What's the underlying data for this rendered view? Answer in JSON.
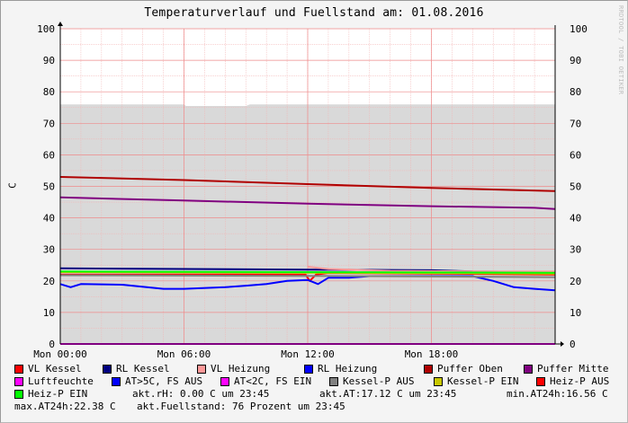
{
  "chart_data": {
    "type": "line",
    "title": "Temperaturverlauf und Fuellstand am: 01.08.2016",
    "ylabel": "C",
    "ylim": [
      0,
      100
    ],
    "y_ticks": [
      "0",
      "10",
      "20",
      "30",
      "40",
      "50",
      "60",
      "70",
      "80",
      "90",
      "100"
    ],
    "x_ticks": [
      {
        "label": "Mon 00:00",
        "t": 0
      },
      {
        "label": "Mon 06:00",
        "t": 6
      },
      {
        "label": "Mon 12:00",
        "t": 12
      },
      {
        "label": "Mon 18:00",
        "t": 18
      }
    ],
    "xlim": [
      0,
      24
    ],
    "area_fuellstand": {
      "color": "#d9d9d9",
      "points": [
        [
          0,
          76
        ],
        [
          6,
          76
        ],
        [
          6.1,
          75.5
        ],
        [
          9,
          75.5
        ],
        [
          9.2,
          76
        ],
        [
          24,
          76
        ]
      ]
    },
    "series": [
      {
        "name": "VL Kessel",
        "color": "#ff0000",
        "points": [
          [
            0,
            22
          ],
          [
            11.9,
            22
          ],
          [
            12.1,
            20
          ],
          [
            12.4,
            22
          ],
          [
            13,
            22.5
          ],
          [
            18,
            22.3
          ],
          [
            24,
            22
          ]
        ]
      },
      {
        "name": "RL Kessel",
        "color": "#000080",
        "points": [
          [
            0,
            24
          ],
          [
            6,
            23.8
          ],
          [
            12,
            23.6
          ],
          [
            18,
            23.4
          ],
          [
            20,
            23
          ],
          [
            24,
            22.8
          ]
        ]
      },
      {
        "name": "VL Heizung",
        "color": "#ff9999",
        "points": [
          [
            12,
            24.5
          ],
          [
            13,
            23.8
          ],
          [
            16,
            23.2
          ],
          [
            20,
            23
          ],
          [
            24,
            23
          ]
        ]
      },
      {
        "name": "RL Heizung",
        "color": "#0000ff",
        "points": [
          [
            0,
            19
          ],
          [
            0.5,
            18
          ],
          [
            1,
            19
          ],
          [
            3,
            18.8
          ],
          [
            5,
            17.5
          ],
          [
            6,
            17.5
          ],
          [
            8,
            18
          ],
          [
            9,
            18.5
          ],
          [
            10,
            19
          ],
          [
            11,
            20
          ],
          [
            12,
            20.3
          ],
          [
            12.5,
            19
          ],
          [
            13,
            21
          ],
          [
            14,
            21
          ],
          [
            15,
            21.5
          ],
          [
            18,
            21.5
          ],
          [
            20,
            21.5
          ],
          [
            21,
            20
          ],
          [
            22,
            18
          ],
          [
            23,
            17.5
          ],
          [
            24,
            17
          ]
        ]
      },
      {
        "name": "Puffer Oben",
        "color": "#b00000",
        "points": [
          [
            0,
            53
          ],
          [
            6,
            52
          ],
          [
            12,
            50.7
          ],
          [
            18,
            49.5
          ],
          [
            24,
            48.5
          ]
        ]
      },
      {
        "name": "Puffer Mitte",
        "color": "#800080",
        "points": [
          [
            0,
            46.5
          ],
          [
            6,
            45.5
          ],
          [
            12,
            44.5
          ],
          [
            18,
            43.7
          ],
          [
            23,
            43.2
          ],
          [
            24,
            42.8
          ]
        ]
      },
      {
        "name": "Luftfeuchte",
        "color": "#ff00ff",
        "points": [
          [
            0,
            0
          ],
          [
            24,
            0
          ]
        ]
      },
      {
        "name": "AT>5C, FS AUS",
        "color": "#0000ff",
        "points": []
      },
      {
        "name": "AT<2C, FS EIN",
        "color": "#ff00ff",
        "points": []
      },
      {
        "name": "Kessel-P AUS",
        "color": "#808080",
        "points": [
          [
            0,
            21.8
          ],
          [
            12,
            21.6
          ],
          [
            24,
            21.2
          ]
        ]
      },
      {
        "name": "Kessel-P EIN",
        "color": "#c8c800",
        "points": [
          [
            0,
            22.8
          ],
          [
            12,
            22.6
          ],
          [
            24,
            22.3
          ]
        ]
      },
      {
        "name": "Heiz-P AUS",
        "color": "#ff0000",
        "points": []
      },
      {
        "name": "Heiz-P EIN",
        "color": "#00ff00",
        "points": [
          [
            0,
            23
          ],
          [
            12,
            22.8
          ],
          [
            24,
            22.6
          ]
        ]
      }
    ]
  },
  "legend_items": [
    {
      "label": "VL Kessel",
      "color": "#ff0000"
    },
    {
      "label": "RL Kessel",
      "color": "#000080"
    },
    {
      "label": "VL Heizung",
      "color": "#ff9999"
    },
    {
      "label": "RL Heizung",
      "color": "#0000ff"
    },
    {
      "label": "Puffer Oben",
      "color": "#b00000"
    },
    {
      "label": "Puffer Mitte",
      "color": "#800080"
    },
    {
      "label": "Luftfeuchte",
      "color": "#ff00ff"
    },
    {
      "label": "AT>5C, FS AUS",
      "color": "#0000ff"
    },
    {
      "label": "AT<2C, FS EIN",
      "color": "#ff00ff"
    },
    {
      "label": "Kessel-P AUS",
      "color": "#808080"
    },
    {
      "label": "Kessel-P EIN",
      "color": "#c8c800"
    },
    {
      "label": "Heiz-P AUS",
      "color": "#ff0000"
    },
    {
      "label": "Heiz-P EIN",
      "color": "#00ff00"
    }
  ],
  "stats": {
    "rh": "akt.rH: 0.00 C um 23:45",
    "at": "akt.AT:17.12 C um 23:45",
    "min": "min.AT24h:16.56 C",
    "max": "max.AT24h:22.38 C",
    "fuellstand": "akt.Fuellstand:   76 Prozent um 23:45"
  },
  "watermark": "RRDTOOL / TOBI OETIKER"
}
